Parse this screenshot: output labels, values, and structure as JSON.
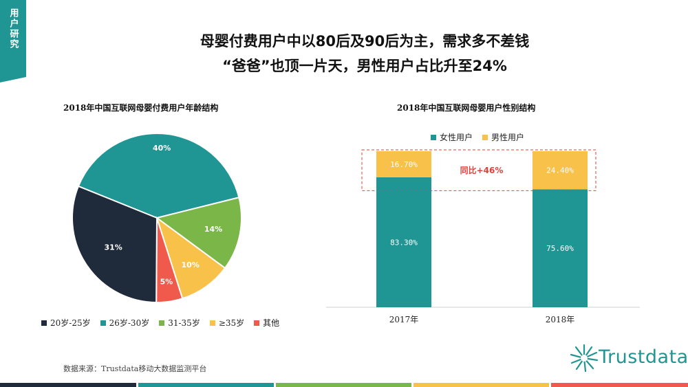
{
  "side_tab": {
    "label": "用户研究"
  },
  "headline": {
    "line1": "母婴付费用户中以80后及90后为主，需求多不差钱",
    "line2": "“爸爸”也顶一片天，男性用户占比升至24%"
  },
  "colors": {
    "accent": "#1f9693",
    "navy": "#1f2a3a",
    "green": "#7ab648",
    "yellow": "#f7c14a",
    "red": "#ef5a4c",
    "footer": [
      "#1f2a3a",
      "#1f9693",
      "#7ab648",
      "#f7c14a",
      "#ef5a4c"
    ]
  },
  "chart_data": [
    {
      "type": "pie",
      "title": "2018年中国互联网母婴付费用户年龄结构",
      "labels": [
        "20岁-25岁",
        "26岁-30岁",
        "31-35岁",
        "≥35岁",
        "其他"
      ],
      "values": [
        31,
        40,
        14,
        10,
        5
      ],
      "value_labels": [
        "31%",
        "40%",
        "14%",
        "10%",
        "5%"
      ],
      "colors": [
        "#1f2a3a",
        "#1f9693",
        "#7ab648",
        "#f7c14a",
        "#ef5a4c"
      ],
      "legend_position": "bottom"
    },
    {
      "type": "bar",
      "stacked": true,
      "title": "2018年中国互联网母婴用户性别结构",
      "categories": [
        "2017年",
        "2018年"
      ],
      "series": [
        {
          "name": "女性用户",
          "values": [
            83.3,
            75.6
          ],
          "labels": [
            "83.30%",
            "75.60%"
          ],
          "color": "#1f9693"
        },
        {
          "name": "男性用户",
          "values": [
            16.7,
            24.4
          ],
          "labels": [
            "16.70%",
            "24.40%"
          ],
          "color": "#f7c14a"
        }
      ],
      "annotation": "同比+46%",
      "ylim": [
        0,
        100
      ],
      "legend_position": "top"
    }
  ],
  "source": "数据来源：Trustdata移动大数据监测平台",
  "logo": {
    "text": "Trustdata",
    "icon": "starburst-logo-icon"
  }
}
